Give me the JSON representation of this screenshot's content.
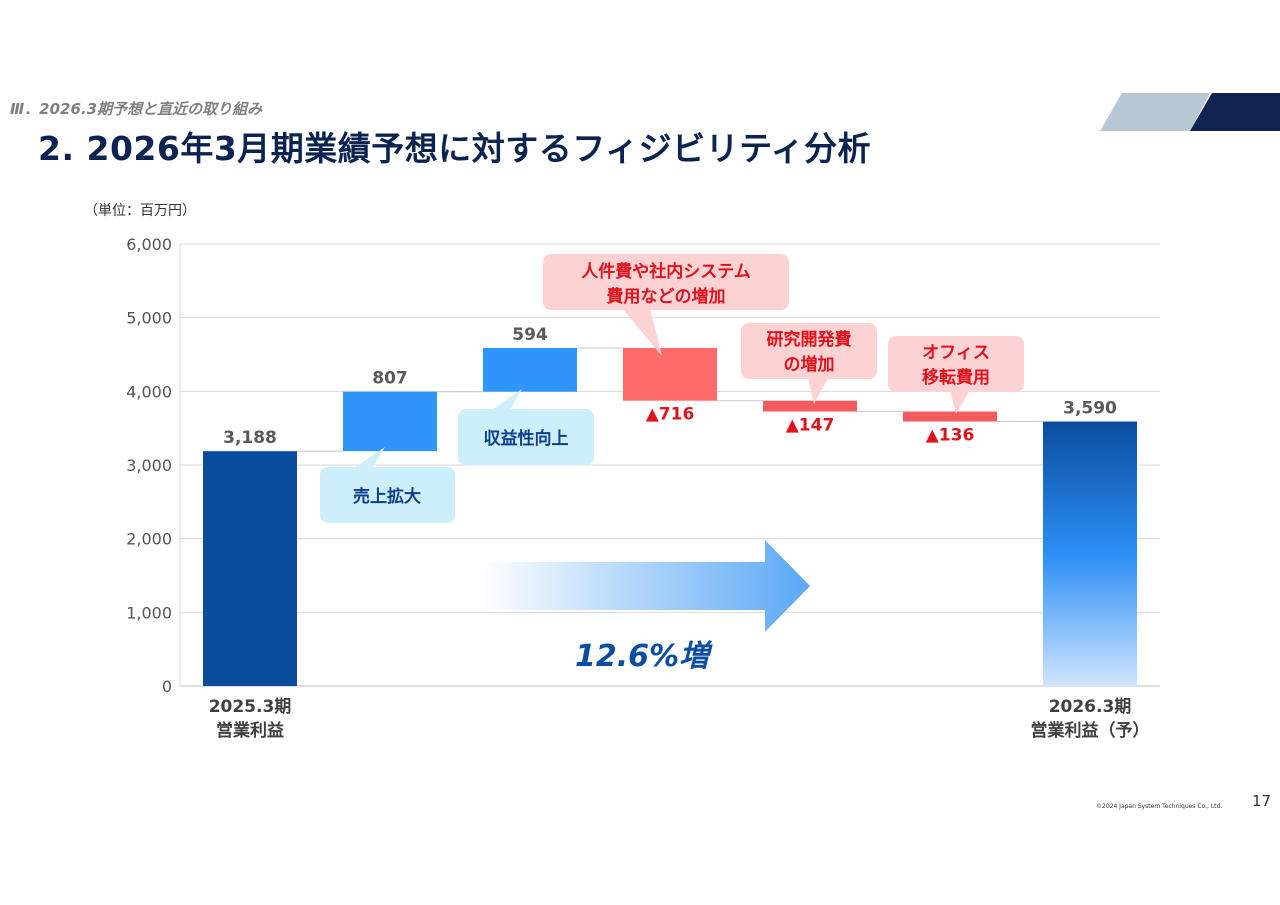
{
  "header": {
    "section": "Ⅲ．2026.3期予想と直近の取り組み",
    "title": "2. 2026年3月期業績予想に対するフィジビリティ分析"
  },
  "unit_label": "（単位：百万円）",
  "growth_label": "12.6%増",
  "callouts": {
    "sales_up": "売上拡大",
    "margin_up": "収益性向上",
    "personnel_1": "人件費や社内システム",
    "personnel_2": "費用などの増加",
    "rnd_1": "研究開発費",
    "rnd_2": "の増加",
    "office_1": "オフィス",
    "office_2": "移転費用"
  },
  "chart_data": {
    "type": "bar",
    "subtype": "waterfall",
    "ylim": [
      0,
      6000
    ],
    "yticks": [
      "0",
      "1,000",
      "2,000",
      "3,000",
      "4,000",
      "5,000",
      "6,000"
    ],
    "grid": true,
    "categories": [
      "2025.3期 営業利益",
      "売上拡大",
      "収益性向上",
      "人件費や社内システム費用などの増加",
      "研究開発費の増加",
      "オフィス移転費用",
      "2026.3期 営業利益（予）"
    ],
    "category_labels": [
      [
        "2025.3期",
        "営業利益"
      ],
      [
        "",
        ""
      ],
      [
        "",
        ""
      ],
      [
        "",
        ""
      ],
      [
        "",
        ""
      ],
      [
        "",
        ""
      ],
      [
        "2026.3期",
        "営業利益（予）"
      ]
    ],
    "steps": [
      {
        "kind": "total",
        "value": 3188,
        "label": "3,188"
      },
      {
        "kind": "increase",
        "value": 807,
        "label": "807"
      },
      {
        "kind": "increase",
        "value": 594,
        "label": "594"
      },
      {
        "kind": "decrease",
        "value": -716,
        "label": "▲716"
      },
      {
        "kind": "decrease",
        "value": -147,
        "label": "▲147"
      },
      {
        "kind": "decrease",
        "value": -136,
        "label": "▲136"
      },
      {
        "kind": "total",
        "value": 3590,
        "label": "3,590"
      }
    ],
    "colors": {
      "start_total": "#0a4d9f",
      "increase": "#2f95fb",
      "decrease": "#ff6b6b",
      "decrease_small": "#f25c5c",
      "end_total_top": "#0a4d9f",
      "end_total_mid": "#2b8ef5",
      "end_total_bottom": "#cfe5ff"
    }
  },
  "footer": {
    "page_number": "17",
    "copyright": "©2024 Japan System Techniques Co., Ltd."
  }
}
